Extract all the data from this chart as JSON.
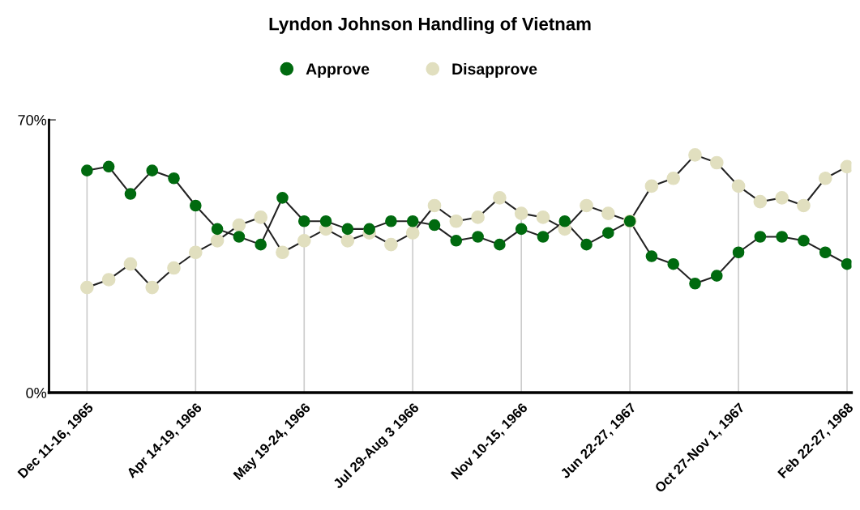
{
  "chart_data": {
    "type": "line",
    "title": "Lyndon Johnson Handling of Vietnam",
    "categories": [
      "Dec 11-16, 1965",
      null,
      null,
      null,
      null,
      "Apr 14-19, 1966",
      null,
      null,
      null,
      null,
      "May 19-24, 1966",
      null,
      null,
      null,
      null,
      "Jul 29-Aug 3 1966",
      null,
      null,
      null,
      null,
      "Nov 10-15, 1966",
      null,
      null,
      null,
      null,
      "Jun 22-27, 1967",
      null,
      null,
      null,
      null,
      "Oct 27-Nov 1, 1967",
      null,
      null,
      null,
      null,
      "Feb 22-27, 1968"
    ],
    "series": [
      {
        "name": "Approve",
        "color": "#006a0f",
        "values": [
          57,
          58,
          51,
          57,
          55,
          48,
          42,
          40,
          38,
          50,
          44,
          44,
          42,
          42,
          44,
          44,
          43,
          39,
          40,
          38,
          42,
          40,
          44,
          38,
          41,
          44,
          35,
          33,
          28,
          30,
          36,
          40,
          40,
          39,
          36,
          33
        ]
      },
      {
        "name": "Disapprove",
        "color": "#e1dfbf",
        "values": [
          27,
          29,
          33,
          27,
          32,
          36,
          39,
          43,
          45,
          36,
          39,
          42,
          39,
          41,
          38,
          41,
          48,
          44,
          45,
          50,
          46,
          45,
          42,
          48,
          46,
          44,
          53,
          55,
          61,
          59,
          53,
          49,
          50,
          48,
          55,
          58
        ]
      }
    ],
    "ylim": [
      0,
      70
    ],
    "yticks": [
      {
        "value": 0,
        "label": "0%"
      },
      {
        "value": 70,
        "label": "70%"
      }
    ],
    "grid": "x",
    "legend": "top",
    "marker": "circle",
    "line_style": "solid"
  }
}
